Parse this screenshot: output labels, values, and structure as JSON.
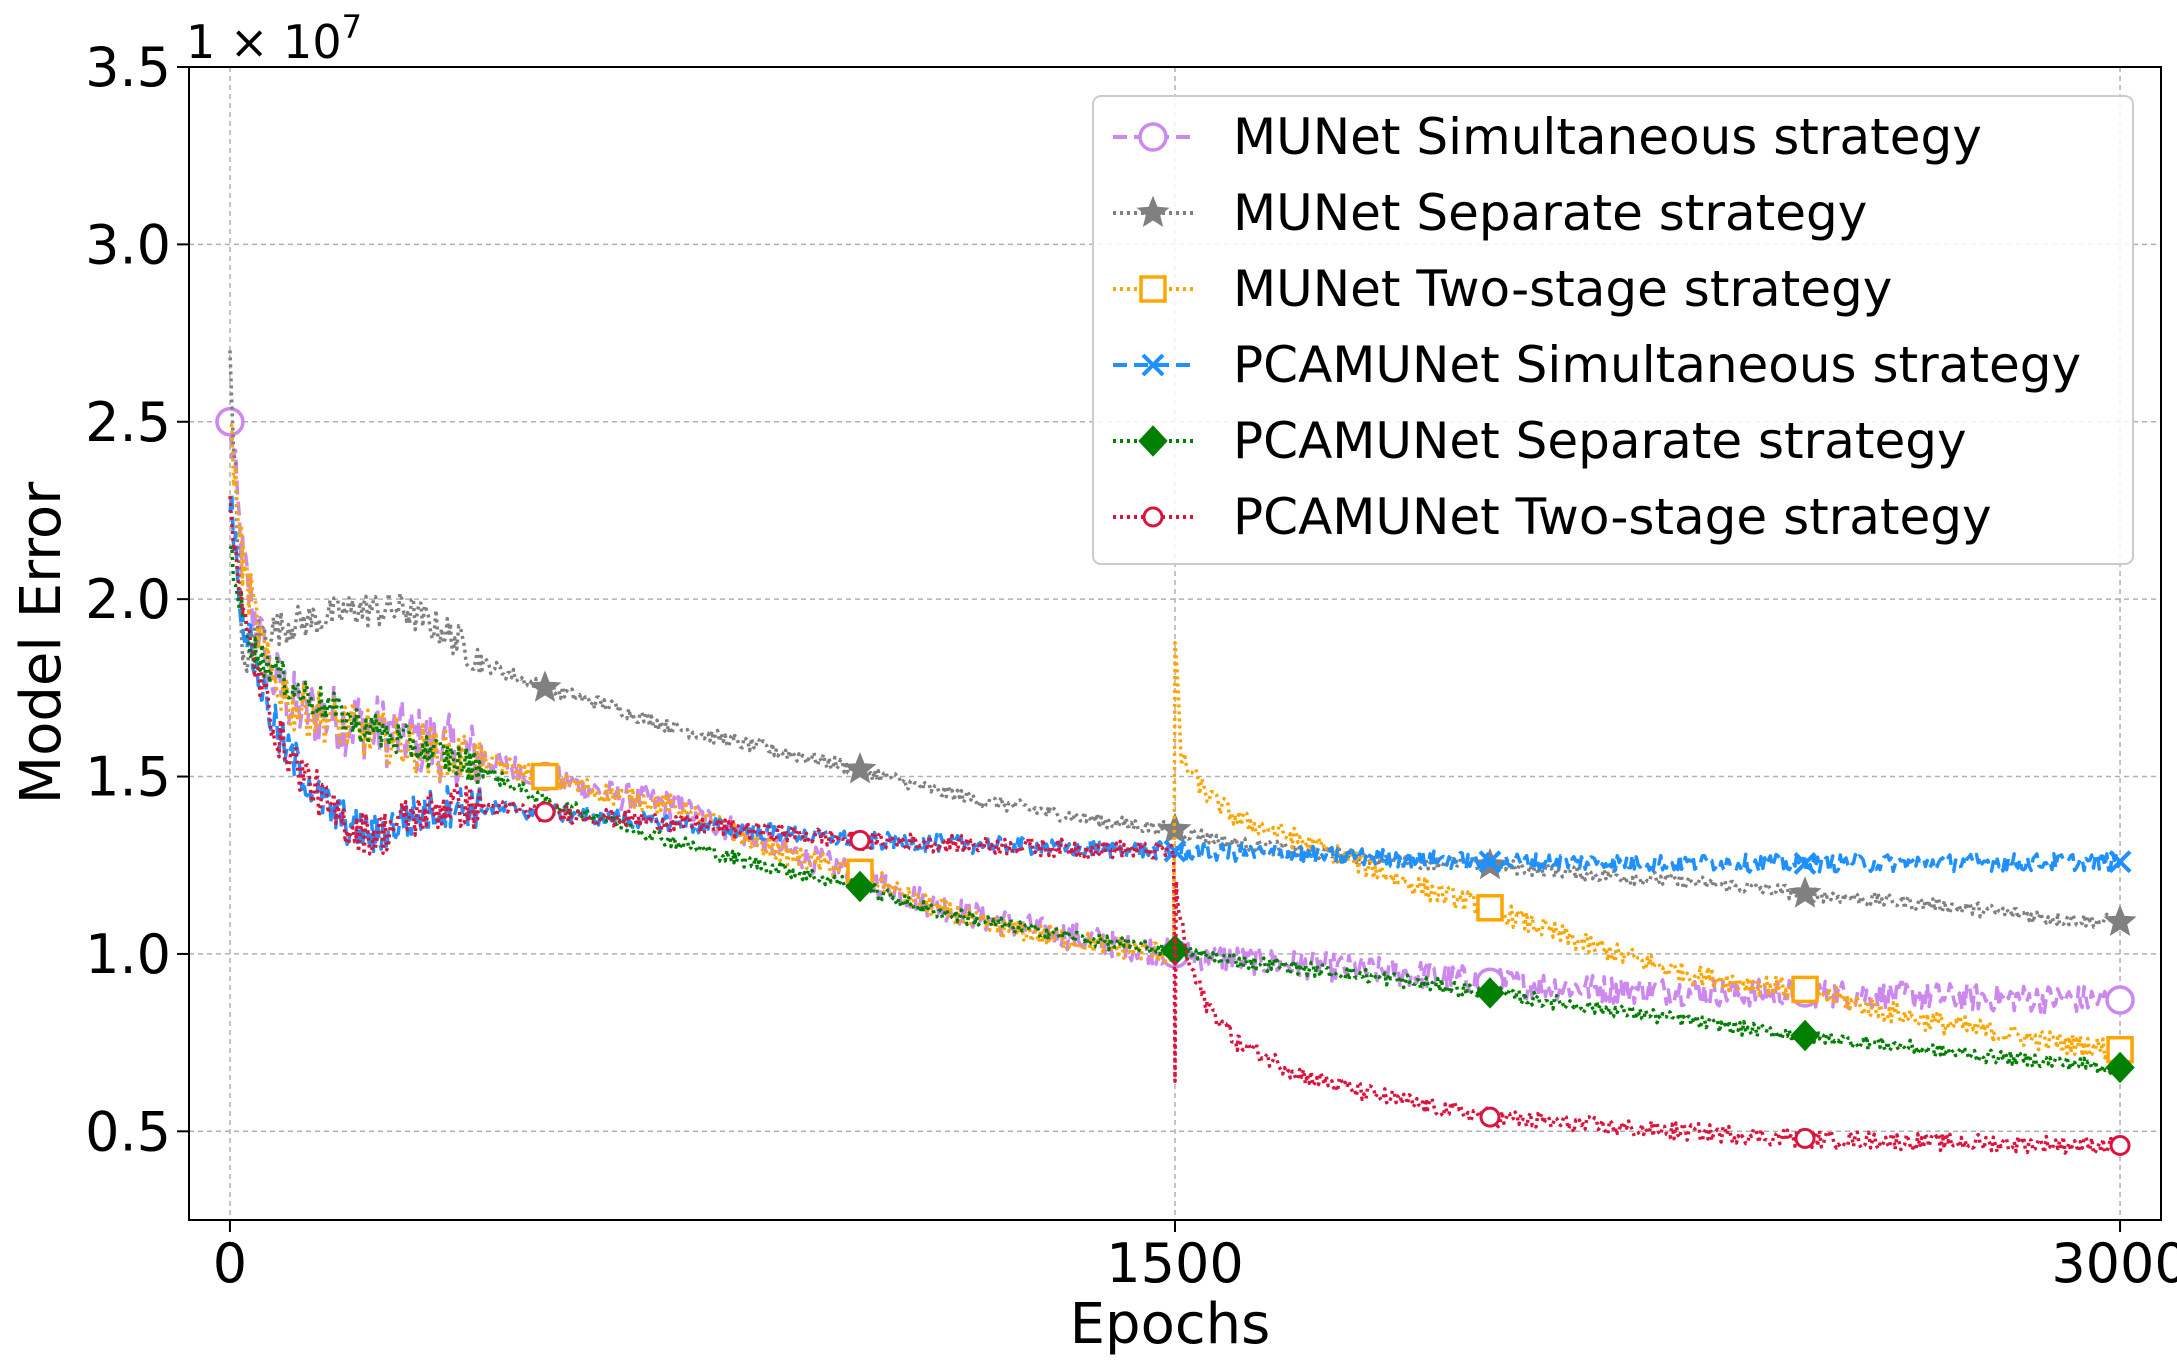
{
  "chart_data": {
    "type": "line",
    "title": "",
    "xlabel": "Epochs",
    "ylabel": "Model Error",
    "xlim": [
      -65,
      3065
    ],
    "ylim": [
      0.25,
      3.5
    ],
    "xticks": [
      0,
      1500,
      3000
    ],
    "xtick_labels": [
      "0",
      "1500",
      "3000"
    ],
    "yticks": [
      0.5,
      1.0,
      1.5,
      2.0,
      2.5,
      3.0,
      3.5
    ],
    "ytick_labels": [
      "0.5",
      "1.0",
      "1.5",
      "2.0",
      "2.5",
      "3.0",
      "3.5"
    ],
    "y_multiplier": "1 × 10",
    "y_multiplier_exp": "7",
    "grid": true,
    "legend_position": "top-right",
    "series": [
      {
        "name": "MUNet Simultaneous strategy",
        "color": "#cc88ee",
        "dash": "dashed",
        "marker": "circle-open",
        "markevery_x": [
          0,
          500,
          1000,
          1500,
          2000,
          2500,
          3000
        ],
        "noise": 0.04,
        "points": [
          [
            0,
            2.5
          ],
          [
            20,
            2.1
          ],
          [
            60,
            1.8
          ],
          [
            100,
            1.7
          ],
          [
            200,
            1.65
          ],
          [
            300,
            1.6
          ],
          [
            400,
            1.55
          ],
          [
            500,
            1.5
          ],
          [
            600,
            1.45
          ],
          [
            700,
            1.42
          ],
          [
            800,
            1.35
          ],
          [
            900,
            1.28
          ],
          [
            1000,
            1.22
          ],
          [
            1100,
            1.15
          ],
          [
            1200,
            1.1
          ],
          [
            1300,
            1.06
          ],
          [
            1400,
            1.03
          ],
          [
            1500,
            1.0
          ],
          [
            1700,
            0.97
          ],
          [
            1900,
            0.94
          ],
          [
            2000,
            0.92
          ],
          [
            2200,
            0.9
          ],
          [
            2400,
            0.89
          ],
          [
            2500,
            0.89
          ],
          [
            2700,
            0.88
          ],
          [
            3000,
            0.87
          ]
        ]
      },
      {
        "name": "MUNet Separate strategy",
        "color": "#808080",
        "dash": "dotted",
        "marker": "star",
        "markevery_x": [
          500,
          1000,
          1500,
          2000,
          2500,
          3000
        ],
        "noise": 0.02,
        "points": [
          [
            0,
            2.7
          ],
          [
            10,
            2.3
          ],
          [
            20,
            1.8
          ],
          [
            40,
            1.9
          ],
          [
            100,
            1.93
          ],
          [
            200,
            1.97
          ],
          [
            280,
            1.97
          ],
          [
            350,
            1.9
          ],
          [
            400,
            1.82
          ],
          [
            500,
            1.75
          ],
          [
            600,
            1.7
          ],
          [
            700,
            1.64
          ],
          [
            800,
            1.6
          ],
          [
            900,
            1.56
          ],
          [
            1000,
            1.52
          ],
          [
            1100,
            1.47
          ],
          [
            1200,
            1.43
          ],
          [
            1300,
            1.4
          ],
          [
            1400,
            1.37
          ],
          [
            1500,
            1.35
          ],
          [
            1600,
            1.31
          ],
          [
            1800,
            1.27
          ],
          [
            2000,
            1.25
          ],
          [
            2200,
            1.22
          ],
          [
            2400,
            1.19
          ],
          [
            2500,
            1.17
          ],
          [
            2700,
            1.14
          ],
          [
            2900,
            1.1
          ],
          [
            3000,
            1.09
          ]
        ]
      },
      {
        "name": "MUNet Two-stage strategy",
        "color": "#ffa500",
        "dash": "dotted",
        "marker": "square-open",
        "markevery_x": [
          500,
          1000,
          2000,
          2500,
          3000
        ],
        "noise": 0.03,
        "points": [
          [
            0,
            2.5
          ],
          [
            20,
            2.1
          ],
          [
            60,
            1.8
          ],
          [
            100,
            1.7
          ],
          [
            200,
            1.63
          ],
          [
            300,
            1.58
          ],
          [
            400,
            1.54
          ],
          [
            500,
            1.5
          ],
          [
            600,
            1.45
          ],
          [
            700,
            1.42
          ],
          [
            800,
            1.34
          ],
          [
            900,
            1.27
          ],
          [
            1000,
            1.23
          ],
          [
            1100,
            1.14
          ],
          [
            1200,
            1.08
          ],
          [
            1300,
            1.05
          ],
          [
            1400,
            1.02
          ],
          [
            1498,
            1.0
          ],
          [
            1500,
            1.88
          ],
          [
            1510,
            1.55
          ],
          [
            1550,
            1.45
          ],
          [
            1600,
            1.38
          ],
          [
            1700,
            1.32
          ],
          [
            1800,
            1.25
          ],
          [
            1900,
            1.18
          ],
          [
            2000,
            1.13
          ],
          [
            2100,
            1.06
          ],
          [
            2200,
            1.0
          ],
          [
            2300,
            0.95
          ],
          [
            2400,
            0.92
          ],
          [
            2500,
            0.9
          ],
          [
            2600,
            0.85
          ],
          [
            2700,
            0.81
          ],
          [
            2800,
            0.78
          ],
          [
            2900,
            0.75
          ],
          [
            3000,
            0.73
          ]
        ]
      },
      {
        "name": "PCAMUNet Simultaneous strategy",
        "color": "#1e90ff",
        "dash": "dashed",
        "marker": "x",
        "markevery_x": [
          1500,
          2000,
          2500,
          3000
        ],
        "noise": 0.025,
        "points": [
          [
            0,
            2.3
          ],
          [
            20,
            1.95
          ],
          [
            50,
            1.75
          ],
          [
            80,
            1.6
          ],
          [
            120,
            1.5
          ],
          [
            160,
            1.4
          ],
          [
            200,
            1.35
          ],
          [
            230,
            1.33
          ],
          [
            280,
            1.38
          ],
          [
            350,
            1.42
          ],
          [
            500,
            1.4
          ],
          [
            700,
            1.37
          ],
          [
            1000,
            1.32
          ],
          [
            1300,
            1.3
          ],
          [
            1500,
            1.29
          ],
          [
            1700,
            1.28
          ],
          [
            2000,
            1.26
          ],
          [
            2500,
            1.255
          ],
          [
            3000,
            1.26
          ]
        ]
      },
      {
        "name": "PCAMUNet Separate strategy",
        "color": "#008000",
        "dash": "dotted",
        "marker": "diamond",
        "markevery_x": [
          1000,
          1500,
          2000,
          2500,
          3000
        ],
        "noise": 0.02,
        "points": [
          [
            0,
            2.15
          ],
          [
            20,
            1.95
          ],
          [
            40,
            1.85
          ],
          [
            100,
            1.75
          ],
          [
            200,
            1.65
          ],
          [
            300,
            1.58
          ],
          [
            400,
            1.52
          ],
          [
            500,
            1.43
          ],
          [
            600,
            1.38
          ],
          [
            700,
            1.32
          ],
          [
            800,
            1.27
          ],
          [
            900,
            1.23
          ],
          [
            1000,
            1.19
          ],
          [
            1100,
            1.13
          ],
          [
            1200,
            1.09
          ],
          [
            1300,
            1.06
          ],
          [
            1400,
            1.03
          ],
          [
            1500,
            1.01
          ],
          [
            1600,
            0.98
          ],
          [
            1800,
            0.94
          ],
          [
            2000,
            0.89
          ],
          [
            2200,
            0.84
          ],
          [
            2400,
            0.79
          ],
          [
            2500,
            0.77
          ],
          [
            2600,
            0.75
          ],
          [
            2800,
            0.71
          ],
          [
            3000,
            0.68
          ]
        ]
      },
      {
        "name": "PCAMUNet Two-stage strategy",
        "color": "#dc143c",
        "dash": "dotted",
        "marker": "circle-open-small",
        "markevery_x": [
          500,
          1000,
          2000,
          2500,
          3000
        ],
        "noise": 0.025,
        "points": [
          [
            0,
            2.3
          ],
          [
            20,
            1.95
          ],
          [
            50,
            1.75
          ],
          [
            80,
            1.6
          ],
          [
            120,
            1.5
          ],
          [
            160,
            1.4
          ],
          [
            200,
            1.35
          ],
          [
            230,
            1.33
          ],
          [
            280,
            1.38
          ],
          [
            350,
            1.42
          ],
          [
            500,
            1.4
          ],
          [
            700,
            1.37
          ],
          [
            1000,
            1.32
          ],
          [
            1300,
            1.3
          ],
          [
            1498,
            1.29
          ],
          [
            1500,
            0.65
          ],
          [
            1502,
            1.18
          ],
          [
            1520,
            0.98
          ],
          [
            1550,
            0.86
          ],
          [
            1600,
            0.75
          ],
          [
            1700,
            0.66
          ],
          [
            1800,
            0.61
          ],
          [
            1900,
            0.57
          ],
          [
            2000,
            0.54
          ],
          [
            2200,
            0.51
          ],
          [
            2400,
            0.49
          ],
          [
            2500,
            0.48
          ],
          [
            2700,
            0.47
          ],
          [
            3000,
            0.46
          ]
        ]
      }
    ]
  }
}
